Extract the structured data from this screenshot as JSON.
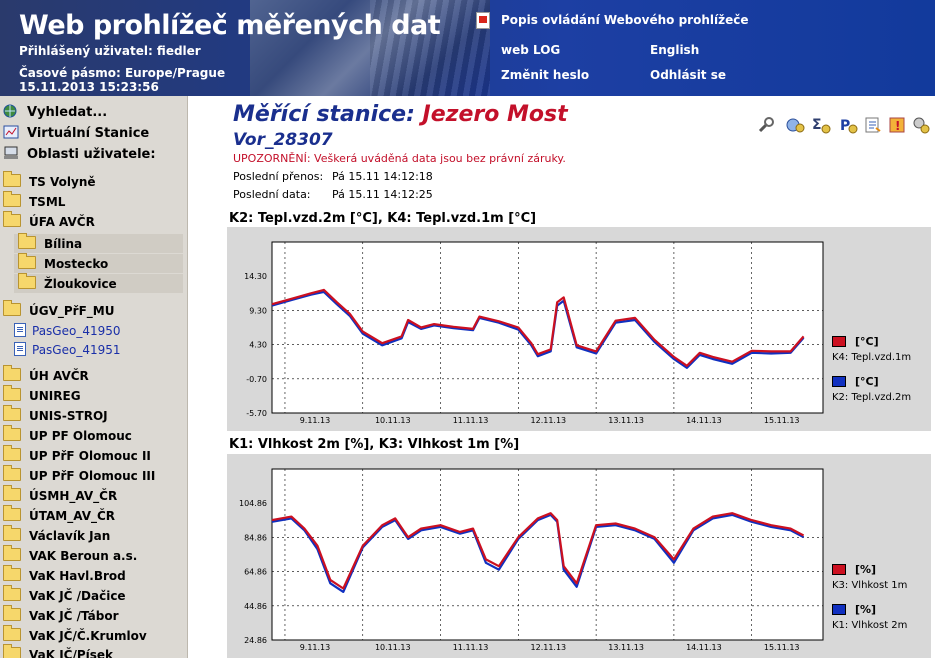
{
  "header": {
    "title": "Web prohlížeč měřených dat",
    "logged_user": "Přihlášený uživatel: fiedler",
    "timezone": "Časové pásmo: Europe/Prague",
    "datetime": "15.11.2013 15:23:56",
    "links": {
      "manual": "Popis ovládání Webového prohlížeče",
      "weblog": "web LOG",
      "english": "English",
      "change_password": "Změnit heslo",
      "logout": "Odhlásit se"
    }
  },
  "sidebar": {
    "search": "Vyhledat...",
    "virtual_stations": "Virtuální Stanice",
    "user_areas": "Oblasti uživatele:",
    "items": [
      {
        "label": "TS Volyně"
      },
      {
        "label": "TSML"
      },
      {
        "label": "ÚFA AVČR"
      },
      {
        "label": "Bílina"
      },
      {
        "label": "Mostecko"
      },
      {
        "label": "Žloukovice"
      },
      {
        "label": "ÚGV_PřF_MU"
      },
      {
        "label": "PasGeo_41950"
      },
      {
        "label": "PasGeo_41951"
      },
      {
        "label": "ÚH AVČR"
      },
      {
        "label": "UNIREG"
      },
      {
        "label": "UNIS-STROJ"
      },
      {
        "label": "UP PF Olomouc"
      },
      {
        "label": "UP PřF Olomouc II"
      },
      {
        "label": "UP PřF Olomouc III"
      },
      {
        "label": "ÚSMH_AV_ČR"
      },
      {
        "label": "ÚTAM_AV_ČR"
      },
      {
        "label": "Václavík Jan"
      },
      {
        "label": "VAK Beroun a.s."
      },
      {
        "label": "VaK Havl.Brod"
      },
      {
        "label": "VaK JČ /Dačice"
      },
      {
        "label": "VaK JČ /Tábor"
      },
      {
        "label": "VaK JČ/Č.Krumlov"
      },
      {
        "label": "VaK JČ/Písek"
      }
    ]
  },
  "station": {
    "label": "Měřící stanice:",
    "name": "Jezero Most",
    "id": "Vor_28307",
    "warning": "UPOZORNĚNÍ: Veškerá uváděná data jsou bez právní záruky.",
    "last_transfer_label": "Poslední přenos:",
    "last_transfer_value": "Pá 15.11 14:12:18",
    "last_data_label": "Poslední data:",
    "last_data_value": "Pá 15.11 14:12:25"
  },
  "tool_icons": [
    "wrench-icon",
    "gears-icon",
    "sigma-icon",
    "p-settings-icon",
    "export-icon",
    "alarm-icon",
    "config-icon"
  ],
  "colors": {
    "series_red": "#cc1020",
    "series_blue": "#1030c0",
    "title_blue": "#1a2f8e",
    "title_red": "#c3102a"
  },
  "chart_data": [
    {
      "type": "line",
      "title": "K2: Tepl.vzd.2m [°C], K4: Tepl.vzd.1m [°C]",
      "ylim": [
        -5.7,
        19.3
      ],
      "yticks": [
        "14.30",
        "9.30",
        "4.30",
        "-0.70",
        "-5.70"
      ],
      "yticks_values": [
        14.3,
        9.3,
        4.3,
        -0.7,
        -5.7
      ],
      "xlim": [
        "2013-11-08T20:00",
        "2013-11-15T22:00"
      ],
      "xticks": [
        "9.11.13",
        "10.11.13",
        "11.11.13",
        "12.11.13",
        "13.11.13",
        "14.11.13",
        "15.11.13"
      ],
      "grid": true,
      "legend_placement": "right",
      "series": [
        {
          "name": "K4: Tepl.vzd.1m",
          "unit": "[°C]",
          "color": "#cc1020",
          "x": [
            "2013-11-08T20:00",
            "2013-11-09T02:00",
            "2013-11-09T08:00",
            "2013-11-09T12:00",
            "2013-11-09T16:00",
            "2013-11-09T20:00",
            "2013-11-10T00:00",
            "2013-11-10T06:00",
            "2013-11-10T12:00",
            "2013-11-10T14:00",
            "2013-11-10T18:00",
            "2013-11-10T22:00",
            "2013-11-11T04:00",
            "2013-11-11T10:00",
            "2013-11-11T12:00",
            "2013-11-11T18:00",
            "2013-11-12T00:00",
            "2013-11-12T04:00",
            "2013-11-12T06:00",
            "2013-11-12T10:00",
            "2013-11-12T12:00",
            "2013-11-12T14:00",
            "2013-11-12T18:00",
            "2013-11-13T00:00",
            "2013-11-13T06:00",
            "2013-11-13T12:00",
            "2013-11-13T18:00",
            "2013-11-14T00:00",
            "2013-11-14T04:00",
            "2013-11-14T08:00",
            "2013-11-14T12:00",
            "2013-11-14T18:00",
            "2013-11-15T00:00",
            "2013-11-15T06:00",
            "2013-11-15T12:00",
            "2013-11-15T16:00"
          ],
          "values": [
            10.2,
            11.0,
            11.8,
            12.3,
            10.5,
            8.8,
            6.2,
            4.5,
            5.5,
            7.9,
            6.8,
            7.3,
            6.9,
            6.6,
            8.4,
            7.7,
            6.8,
            4.5,
            2.9,
            3.6,
            10.5,
            11.2,
            4.2,
            3.3,
            7.8,
            8.2,
            5.0,
            2.5,
            1.2,
            3.1,
            2.5,
            1.8,
            3.4,
            3.3,
            3.3,
            5.5
          ]
        },
        {
          "name": "K2: Tepl.vzd.2m",
          "unit": "[°C]",
          "color": "#1030c0",
          "x": [
            "2013-11-08T20:00",
            "2013-11-09T02:00",
            "2013-11-09T08:00",
            "2013-11-09T12:00",
            "2013-11-09T16:00",
            "2013-11-09T20:00",
            "2013-11-10T00:00",
            "2013-11-10T06:00",
            "2013-11-10T12:00",
            "2013-11-10T14:00",
            "2013-11-10T18:00",
            "2013-11-10T22:00",
            "2013-11-11T04:00",
            "2013-11-11T10:00",
            "2013-11-11T12:00",
            "2013-11-11T18:00",
            "2013-11-12T00:00",
            "2013-11-12T04:00",
            "2013-11-12T06:00",
            "2013-11-12T10:00",
            "2013-11-12T12:00",
            "2013-11-12T14:00",
            "2013-11-12T18:00",
            "2013-11-13T00:00",
            "2013-11-13T06:00",
            "2013-11-13T12:00",
            "2013-11-13T18:00",
            "2013-11-14T00:00",
            "2013-11-14T04:00",
            "2013-11-14T08:00",
            "2013-11-14T12:00",
            "2013-11-14T18:00",
            "2013-11-15T00:00",
            "2013-11-15T06:00",
            "2013-11-15T12:00",
            "2013-11-15T16:00"
          ],
          "values": [
            10.0,
            10.8,
            11.6,
            12.0,
            10.2,
            8.5,
            5.9,
            4.2,
            5.2,
            7.6,
            6.6,
            7.1,
            6.7,
            6.4,
            8.2,
            7.5,
            6.5,
            4.2,
            2.6,
            3.3,
            10.0,
            10.7,
            3.9,
            3.0,
            7.5,
            7.9,
            4.7,
            2.2,
            0.9,
            2.8,
            2.2,
            1.5,
            3.1,
            3.0,
            3.1,
            5.3
          ]
        }
      ]
    },
    {
      "type": "line",
      "title": "K1: Vlhkost 2m [%], K3: Vlhkost 1m [%]",
      "ylim": [
        24.86,
        124.86
      ],
      "yticks": [
        "104.86",
        "84.86",
        "64.86",
        "44.86",
        "24.86"
      ],
      "yticks_values": [
        104.86,
        84.86,
        64.86,
        44.86,
        24.86
      ],
      "xlim": [
        "2013-11-08T20:00",
        "2013-11-15T22:00"
      ],
      "xticks": [
        "9.11.13",
        "10.11.13",
        "11.11.13",
        "12.11.13",
        "13.11.13",
        "14.11.13",
        "15.11.13"
      ],
      "grid": true,
      "legend_placement": "right",
      "series": [
        {
          "name": "K3: Vlhkost 1m",
          "unit": "[%]",
          "color": "#cc1020",
          "x": [
            "2013-11-08T20:00",
            "2013-11-09T02:00",
            "2013-11-09T06:00",
            "2013-11-09T10:00",
            "2013-11-09T14:00",
            "2013-11-09T18:00",
            "2013-11-10T00:00",
            "2013-11-10T06:00",
            "2013-11-10T10:00",
            "2013-11-10T14:00",
            "2013-11-10T18:00",
            "2013-11-11T00:00",
            "2013-11-11T06:00",
            "2013-11-11T10:00",
            "2013-11-11T14:00",
            "2013-11-11T18:00",
            "2013-11-12T00:00",
            "2013-11-12T06:00",
            "2013-11-12T10:00",
            "2013-11-12T12:00",
            "2013-11-12T14:00",
            "2013-11-12T18:00",
            "2013-11-13T00:00",
            "2013-11-13T06:00",
            "2013-11-13T12:00",
            "2013-11-13T18:00",
            "2013-11-14T00:00",
            "2013-11-14T06:00",
            "2013-11-14T12:00",
            "2013-11-14T18:00",
            "2013-11-15T00:00",
            "2013-11-15T06:00",
            "2013-11-15T12:00",
            "2013-11-15T16:00"
          ],
          "values": [
            95,
            97,
            90,
            80,
            60,
            55,
            80,
            92,
            96,
            85,
            90,
            92,
            88,
            90,
            72,
            68,
            85,
            96,
            99,
            95,
            68,
            58,
            92,
            93,
            90,
            85,
            72,
            90,
            97,
            99,
            95,
            92,
            90,
            86
          ]
        },
        {
          "name": "K1: Vlhkost 2m",
          "unit": "[%]",
          "color": "#1030c0",
          "x": [
            "2013-11-08T20:00",
            "2013-11-09T02:00",
            "2013-11-09T06:00",
            "2013-11-09T10:00",
            "2013-11-09T14:00",
            "2013-11-09T18:00",
            "2013-11-10T00:00",
            "2013-11-10T06:00",
            "2013-11-10T10:00",
            "2013-11-10T14:00",
            "2013-11-10T18:00",
            "2013-11-11T00:00",
            "2013-11-11T06:00",
            "2013-11-11T10:00",
            "2013-11-11T14:00",
            "2013-11-11T18:00",
            "2013-11-12T00:00",
            "2013-11-12T06:00",
            "2013-11-12T10:00",
            "2013-11-12T12:00",
            "2013-11-12T14:00",
            "2013-11-12T18:00",
            "2013-11-13T00:00",
            "2013-11-13T06:00",
            "2013-11-13T12:00",
            "2013-11-13T18:00",
            "2013-11-14T00:00",
            "2013-11-14T06:00",
            "2013-11-14T12:00",
            "2013-11-14T18:00",
            "2013-11-15T00:00",
            "2013-11-15T06:00",
            "2013-11-15T12:00",
            "2013-11-15T16:00"
          ],
          "values": [
            94,
            96,
            89,
            78,
            58,
            53,
            79,
            91,
            95,
            84,
            89,
            91,
            87,
            89,
            70,
            66,
            84,
            95,
            98,
            94,
            66,
            56,
            91,
            92,
            89,
            84,
            70,
            89,
            96,
            98,
            94,
            91,
            89,
            85
          ]
        }
      ]
    }
  ]
}
